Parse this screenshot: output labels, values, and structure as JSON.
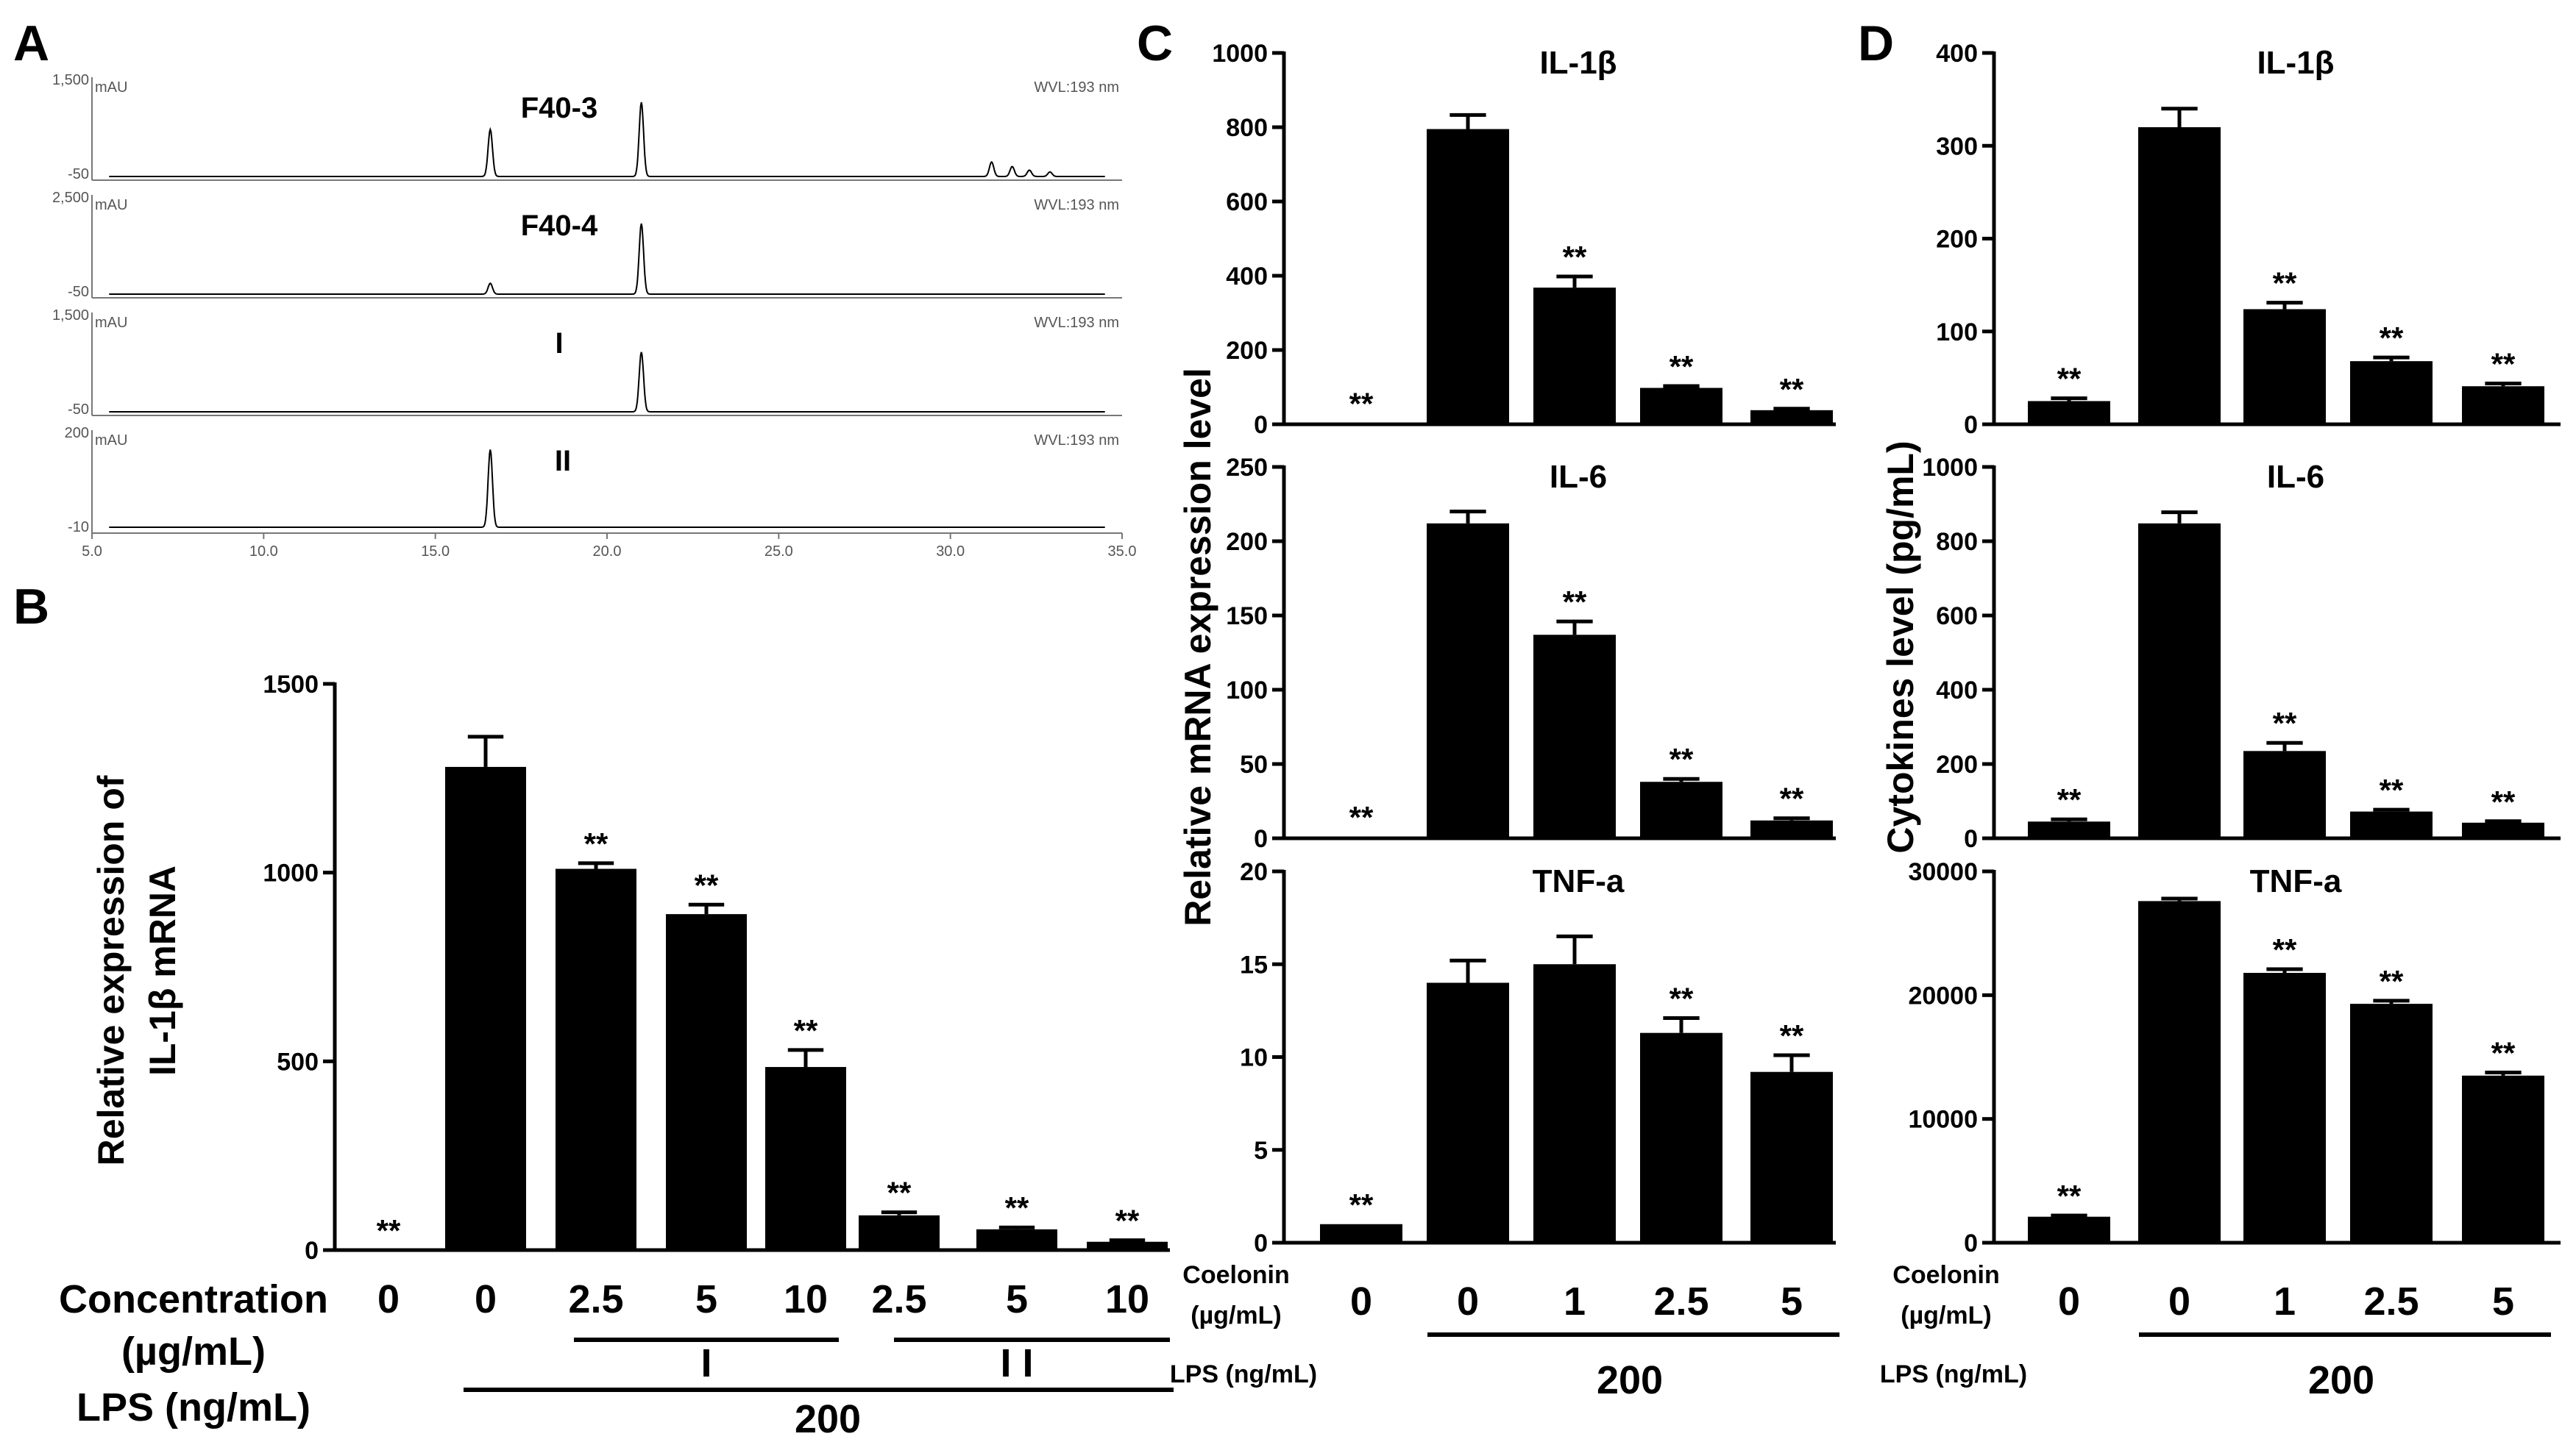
{
  "panels": {
    "A": {
      "letter": "A",
      "x_ticks": [
        5.0,
        10.0,
        15.0,
        20.0,
        25.0,
        30.0,
        35.0
      ],
      "x_tick_labels": [
        "5.0",
        "10.0",
        "15.0",
        "20.0",
        "25.0",
        "30.0",
        "35.0"
      ],
      "unit_label": "mAU",
      "wavelength_label": "WVL:193 nm",
      "traces": [
        {
          "name": "F40-3",
          "y_top": "1,500",
          "y_bottom": "-50",
          "peaks": [
            {
              "rt": 16.6,
              "h": 0.52
            },
            {
              "rt": 21.0,
              "h": 0.82
            },
            {
              "rt": 31.2,
              "h": 0.16
            },
            {
              "rt": 31.8,
              "h": 0.11
            },
            {
              "rt": 32.3,
              "h": 0.07
            },
            {
              "rt": 32.9,
              "h": 0.05
            }
          ]
        },
        {
          "name": "F40-4",
          "y_top": "2,500",
          "y_bottom": "-50",
          "peaks": [
            {
              "rt": 16.6,
              "h": 0.12
            },
            {
              "rt": 21.0,
              "h": 0.78
            }
          ]
        },
        {
          "name": "I",
          "y_top": "1,500",
          "y_bottom": "-50",
          "peaks": [
            {
              "rt": 21.0,
              "h": 0.66
            }
          ]
        },
        {
          "name": "II",
          "y_top": "200",
          "y_bottom": "-10",
          "peaks": [
            {
              "rt": 16.6,
              "h": 0.88
            }
          ]
        }
      ]
    },
    "B": {
      "letter": "B"
    },
    "C": {
      "letter": "C"
    },
    "D": {
      "letter": "D"
    }
  },
  "chart_data": [
    {
      "id": "B",
      "type": "bar",
      "ylabel_line1": "Relative expression of",
      "ylabel_line2": "IL-1β mRNA",
      "ylim": [
        0,
        1500
      ],
      "yticks": [
        0,
        500,
        1000,
        1500
      ],
      "categories": [
        "0",
        "0",
        "2.5",
        "5",
        "10",
        "2.5",
        "5",
        "10"
      ],
      "values": [
        0,
        1280,
        1010,
        890,
        485,
        92,
        55,
        22
      ],
      "errors": [
        0,
        80,
        15,
        25,
        45,
        8,
        5,
        4
      ],
      "significance": [
        "**",
        "",
        "**",
        "**",
        "**",
        "**",
        "**",
        "**"
      ],
      "concentration_label": "Concentration",
      "concentration_unit": "(µg/mL)",
      "lps_label": "LPS (ng/mL)",
      "lps_value": "200",
      "group_labels": [
        "I",
        "I I"
      ]
    },
    {
      "id": "C",
      "type": "bar",
      "ylabel": "Relative mRNA expression level",
      "categories": [
        "0",
        "0",
        "1",
        "2.5",
        "5"
      ],
      "coelonin_label": "Coelonin",
      "coelonin_unit": "(µg/mL)",
      "lps_label": "LPS (ng/mL)",
      "lps_value": "200",
      "subplots": [
        {
          "title": "IL-1β",
          "ylim": [
            0,
            1000
          ],
          "yticks": [
            0,
            200,
            400,
            600,
            800,
            1000
          ],
          "values": [
            3,
            795,
            368,
            98,
            38
          ],
          "errors": [
            0,
            38,
            30,
            5,
            4
          ],
          "significance": [
            "**",
            "",
            "**",
            "**",
            "**"
          ]
        },
        {
          "title": "IL-6",
          "ylim": [
            0,
            250
          ],
          "yticks": [
            0,
            50,
            100,
            150,
            200,
            250
          ],
          "values": [
            1,
            212,
            137,
            38,
            12
          ],
          "errors": [
            0,
            8,
            9,
            2,
            1.5
          ],
          "significance": [
            "**",
            "",
            "**",
            "**",
            "**"
          ]
        },
        {
          "title": "TNF-a",
          "ylim": [
            0,
            20
          ],
          "yticks": [
            0,
            5,
            10,
            15,
            20
          ],
          "values": [
            1,
            14,
            15,
            11.3,
            9.2
          ],
          "errors": [
            0,
            1.2,
            1.5,
            0.8,
            0.9
          ],
          "significance": [
            "**",
            "",
            "",
            "**",
            "**"
          ]
        }
      ]
    },
    {
      "id": "D",
      "type": "bar",
      "ylabel": "Cytokines level (pg/mL)",
      "categories": [
        "0",
        "0",
        "1",
        "2.5",
        "5"
      ],
      "coelonin_label": "Coelonin",
      "coelonin_unit": "(µg/mL)",
      "lps_label": "LPS (ng/mL)",
      "lps_value": "200",
      "subplots": [
        {
          "title": "IL-1β",
          "ylim": [
            0,
            400
          ],
          "yticks": [
            0,
            100,
            200,
            300,
            400
          ],
          "values": [
            25,
            320,
            124,
            68,
            41
          ],
          "errors": [
            3,
            20,
            7,
            4,
            3
          ],
          "significance": [
            "**",
            "",
            "**",
            "**",
            "**"
          ]
        },
        {
          "title": "IL-6",
          "ylim": [
            0,
            1000
          ],
          "yticks": [
            0,
            200,
            400,
            600,
            800,
            1000
          ],
          "values": [
            45,
            848,
            235,
            72,
            42
          ],
          "errors": [
            6,
            30,
            22,
            5,
            4
          ],
          "significance": [
            "**",
            "",
            "**",
            "**",
            "**"
          ]
        },
        {
          "title": "TNF-a",
          "ylim": [
            0,
            30000
          ],
          "yticks": [
            0,
            10000,
            20000,
            30000
          ],
          "values": [
            2100,
            27600,
            21800,
            19300,
            13500
          ],
          "errors": [
            100,
            200,
            300,
            250,
            250
          ],
          "significance": [
            "**",
            "",
            "**",
            "**",
            "**"
          ]
        }
      ]
    }
  ]
}
